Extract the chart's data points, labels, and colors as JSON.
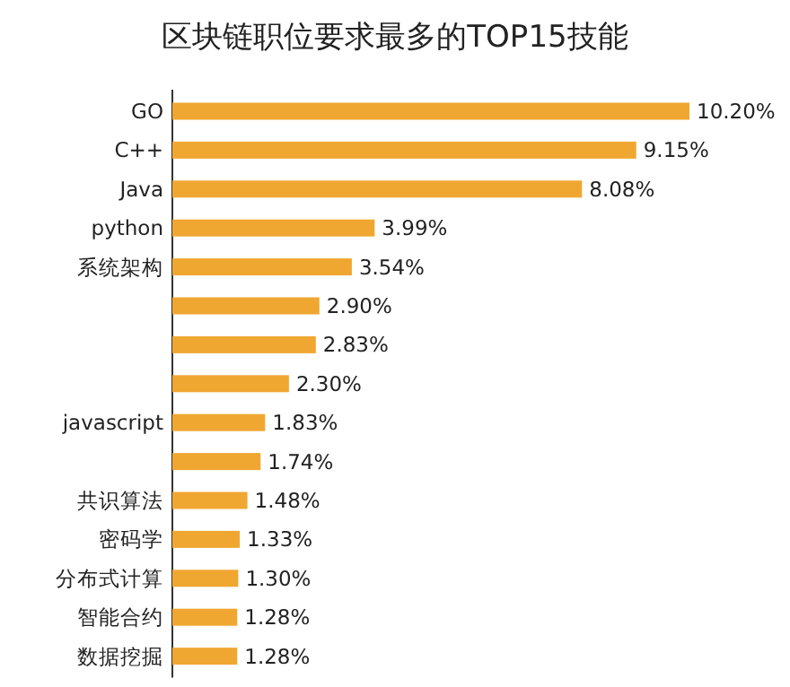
{
  "chart_data": {
    "type": "bar",
    "orientation": "horizontal",
    "title": "区块链职位要求最多的TOP15技能",
    "categories": [
      "GO",
      "C++",
      "Java",
      "python",
      "系统架构",
      null,
      null,
      null,
      "javascript",
      null,
      "共识算法",
      "密码学",
      "分布式计算",
      "智能合约",
      "数据挖掘"
    ],
    "values": [
      10.2,
      9.15,
      8.08,
      3.99,
      3.54,
      2.9,
      2.83,
      2.3,
      1.83,
      1.74,
      1.48,
      1.33,
      1.3,
      1.28,
      1.28
    ],
    "value_labels": [
      "10.20%",
      "9.15%",
      "8.08%",
      "3.99%",
      "3.54%",
      "2.90%",
      "2.83%",
      "2.30%",
      "1.83%",
      "1.74%",
      "1.48%",
      "1.33%",
      "1.30%",
      "1.28%",
      "1.28%"
    ],
    "color": "#f0a732"
  }
}
